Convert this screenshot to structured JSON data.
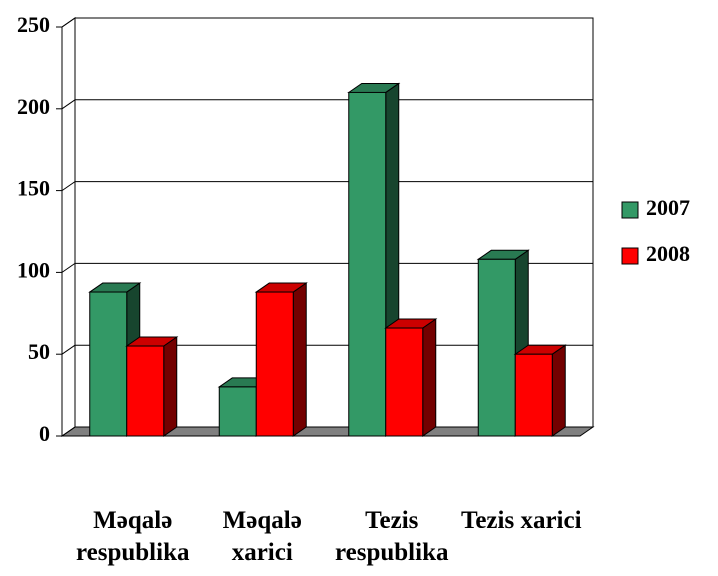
{
  "chart_data": {
    "type": "bar3d",
    "categories": [
      "Məqalə respublika",
      "Məqalə xarici",
      "Tezis respublika",
      "Tezis xarici"
    ],
    "series": [
      {
        "name": "2007",
        "color": "#339966",
        "values": [
          88,
          30,
          210,
          108
        ]
      },
      {
        "name": "2008",
        "color": "#ff0000",
        "values": [
          55,
          88,
          66,
          50
        ]
      }
    ],
    "ylim": [
      0,
      250
    ],
    "yticks": [
      0,
      50,
      100,
      150,
      200,
      250
    ],
    "grid": true,
    "legend": "right"
  }
}
